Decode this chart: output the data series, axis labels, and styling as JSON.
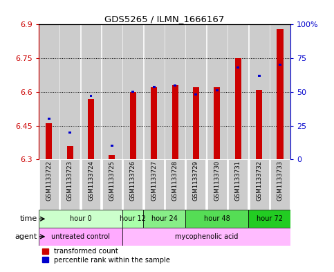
{
  "title": "GDS5265 / ILMN_1666167",
  "samples": [
    "GSM1133722",
    "GSM1133723",
    "GSM1133724",
    "GSM1133725",
    "GSM1133726",
    "GSM1133727",
    "GSM1133728",
    "GSM1133729",
    "GSM1133730",
    "GSM1133731",
    "GSM1133732",
    "GSM1133733"
  ],
  "red_values": [
    6.46,
    6.36,
    6.57,
    6.32,
    6.6,
    6.62,
    6.63,
    6.62,
    6.62,
    6.75,
    6.61,
    6.88
  ],
  "blue_values": [
    30,
    20,
    47,
    10,
    50,
    54,
    55,
    48,
    51,
    68,
    62,
    70
  ],
  "ymin": 6.3,
  "ymax": 6.9,
  "yticks": [
    6.3,
    6.45,
    6.6,
    6.75,
    6.9
  ],
  "y2min": 0,
  "y2max": 100,
  "y2ticks": [
    0,
    25,
    50,
    75,
    100
  ],
  "y2ticklabels": [
    "0",
    "25",
    "50",
    "75",
    "100%"
  ],
  "bar_bottom": 6.3,
  "red_color": "#cc0000",
  "blue_color": "#0000cc",
  "bg_color": "#ffffff",
  "col_bg": "#cccccc",
  "time_groups": [
    {
      "label": "hour 0",
      "start": 0,
      "end": 4,
      "color": "#ccffcc"
    },
    {
      "label": "hour 12",
      "start": 4,
      "end": 5,
      "color": "#aaffaa"
    },
    {
      "label": "hour 24",
      "start": 5,
      "end": 7,
      "color": "#88ee88"
    },
    {
      "label": "hour 48",
      "start": 7,
      "end": 10,
      "color": "#55dd55"
    },
    {
      "label": "hour 72",
      "start": 10,
      "end": 12,
      "color": "#22cc22"
    }
  ],
  "agent_groups": [
    {
      "label": "untreated control",
      "start": 0,
      "end": 4,
      "color": "#ffaaff"
    },
    {
      "label": "mycophenolic acid",
      "start": 4,
      "end": 12,
      "color": "#ffbbff"
    }
  ],
  "legend_red": "transformed count",
  "legend_blue": "percentile rank within the sample",
  "tick_color_left": "#cc0000",
  "tick_color_right": "#0000cc"
}
